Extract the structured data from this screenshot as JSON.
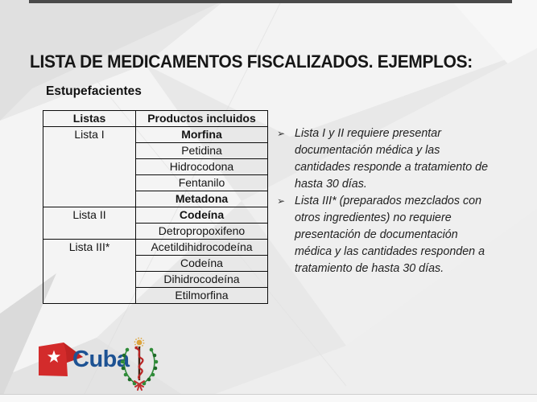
{
  "slide": {
    "title": "LISTA DE MEDICAMENTOS FISCALIZADOS. EJEMPLOS:",
    "subtitle": "Estupefacientes"
  },
  "table": {
    "headers": [
      "Listas",
      "Productos incluidos"
    ],
    "groups": [
      {
        "list": "Lista I",
        "products": [
          {
            "name": "Morfina",
            "bold": true
          },
          {
            "name": "Petidina",
            "bold": false
          },
          {
            "name": "Hidrocodona",
            "bold": false
          },
          {
            "name": "Fentanilo",
            "bold": false
          },
          {
            "name": "Metadona",
            "bold": true
          }
        ]
      },
      {
        "list": "Lista II",
        "products": [
          {
            "name": "Codeína",
            "bold": true
          },
          {
            "name": "Detropropoxifeno",
            "bold": false
          }
        ]
      },
      {
        "list": "Lista III*",
        "products": [
          {
            "name": "Acetildihidrocodeína",
            "bold": false
          },
          {
            "name": "Codeína",
            "bold": false
          },
          {
            "name": "Dihidrocodeína",
            "bold": false
          },
          {
            "name": "Etilmorfina",
            "bold": false
          }
        ]
      }
    ]
  },
  "notes": {
    "bullet_char": "➢",
    "items": [
      {
        "lines": [
          "Lista I y II requiere presentar",
          "documentación médica y las",
          "cantidades responde a tratamiento de",
          "hasta 30 días."
        ]
      },
      {
        "lines": [
          "Lista III* (preparados mezclados con",
          "otros ingredientes) no requiere",
          "presentación de documentación",
          "médica y las cantidades responden a",
          "tratamiento de hasta 30 días."
        ]
      }
    ]
  },
  "footer": {
    "brand": "Cuba"
  },
  "colors": {
    "flag_red": "#d32b2b",
    "brand_blue": "#1d5293",
    "wreath_green": "#2f8b38",
    "snake_red": "#b92525",
    "sun_gold": "#dca43c",
    "table_border": "#0c0c0c",
    "title_text": "#161616"
  }
}
